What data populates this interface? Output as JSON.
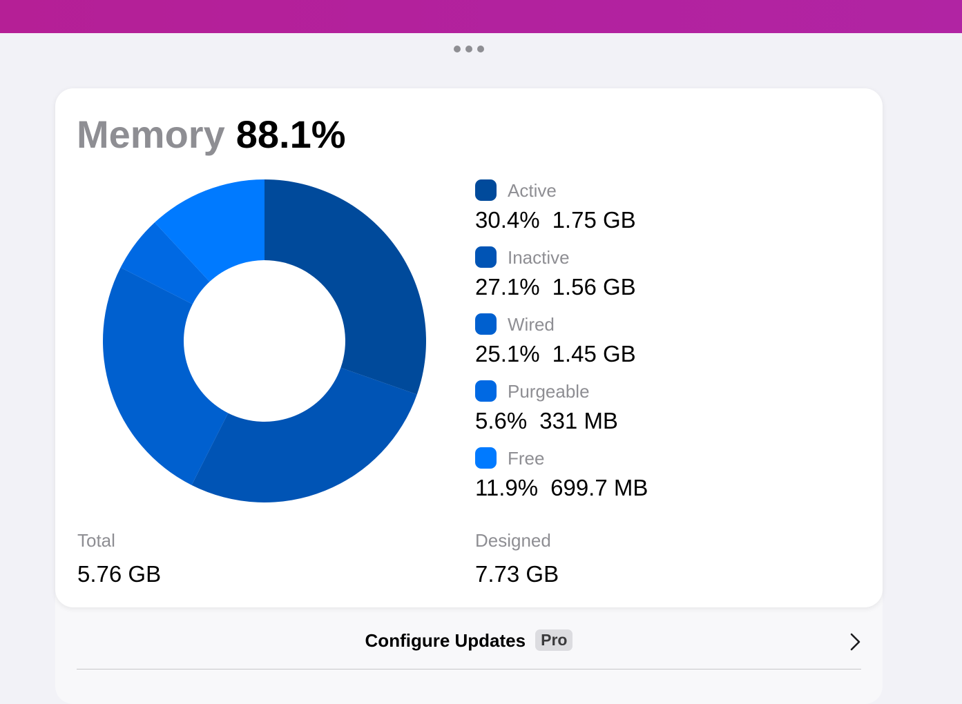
{
  "header": {
    "accent_color": "#b51f96"
  },
  "card": {
    "title_label": "Memory",
    "title_value": "88.1%"
  },
  "chart_data": {
    "type": "pie",
    "categories": [
      "Active",
      "Inactive",
      "Wired",
      "Purgeable",
      "Free"
    ],
    "values": [
      30.4,
      27.1,
      25.1,
      5.6,
      11.9
    ],
    "colors": [
      "#004a9b",
      "#0054b5",
      "#0060cf",
      "#0069e3",
      "#007aff"
    ],
    "donut": true
  },
  "legend": [
    {
      "name": "Active",
      "percent": "30.4%",
      "size": "1.75 GB",
      "color": "#004a9b"
    },
    {
      "name": "Inactive",
      "percent": "27.1%",
      "size": "1.56 GB",
      "color": "#0054b5"
    },
    {
      "name": "Wired",
      "percent": "25.1%",
      "size": "1.45 GB",
      "color": "#0060cf"
    },
    {
      "name": "Purgeable",
      "percent": "5.6%",
      "size": "331 MB",
      "color": "#0069e3"
    },
    {
      "name": "Free",
      "percent": "11.9%",
      "size": "699.7 MB",
      "color": "#007aff"
    }
  ],
  "stats": {
    "total_label": "Total",
    "total_value": "5.76 GB",
    "designed_label": "Designed",
    "designed_value": "7.73 GB"
  },
  "configure": {
    "label": "Configure Updates",
    "badge": "Pro",
    "icon": "chevron-right-icon"
  }
}
